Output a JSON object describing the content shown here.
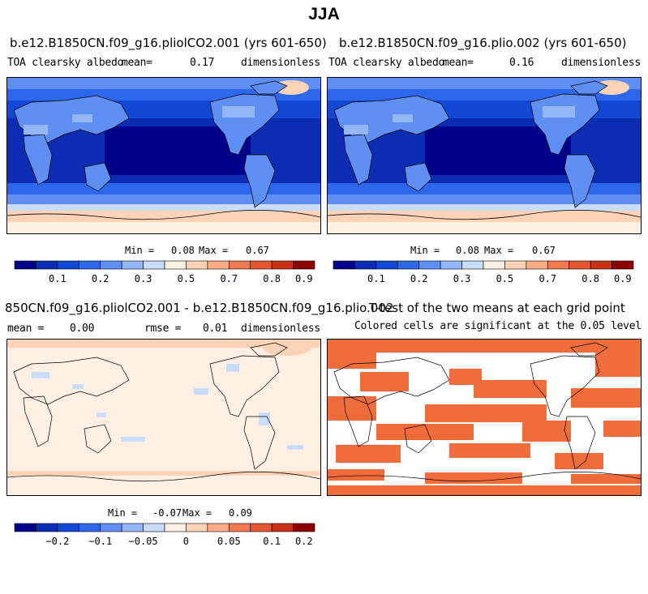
{
  "main_title": "JJA",
  "colors": {
    "albedo_scale": [
      "#00008b",
      "#0a2db4",
      "#1148d6",
      "#2d67ec",
      "#5f8ff2",
      "#93b6f7",
      "#c7ddfb",
      "#fff0e3",
      "#fdd3b8",
      "#fbab86",
      "#f37a50",
      "#e4562f",
      "#c83018",
      "#8b0000"
    ],
    "land_outline": "#000000",
    "significance": "#f06c3a"
  },
  "panels": {
    "p1": {
      "title": "b.e12.B1850CN.f09_g16.pliolCO2.001 (yrs 601-650)",
      "variable": "TOA clearsky albedo",
      "mean_label": "mean=",
      "mean_value": "0.17",
      "units": "dimensionless",
      "min_label": "Min =",
      "min_value": "0.08",
      "max_label": "Max =",
      "max_value": "0.67"
    },
    "p2": {
      "title": "b.e12.B1850CN.f09_g16.plio.002 (yrs 601-650)",
      "variable": "TOA clearsky albedo",
      "mean_label": "mean=",
      "mean_value": "0.16",
      "units": "dimensionless",
      "min_label": "Min =",
      "min_value": "0.08",
      "max_label": "Max =",
      "max_value": "0.67"
    },
    "p3": {
      "title": "850CN.f09_g16.pliolCO2.001 - b.e12.B1850CN.f09_g16.plio.002",
      "mean_label": "mean =",
      "mean_value": "0.00",
      "rmse_label": "rmse =",
      "rmse_value": "0.01",
      "units": "dimensionless",
      "min_label": "Min =",
      "min_value": "-0.07",
      "max_label": "Max =",
      "max_value": "0.09"
    },
    "p4": {
      "title": "T-test of the two means at each grid point",
      "subtitle": "Colored cells are significant at the 0.05 level"
    }
  },
  "chart_data": [
    {
      "type": "heatmap",
      "title": "b.e12.B1850CN.f09_g16.pliolCO2.001 (yrs 601-650)",
      "variable": "TOA clearsky albedo",
      "mean": 0.17,
      "min": 0.08,
      "max": 0.67,
      "colorbar_ticks": [
        "0.1",
        "0.2",
        "0.3",
        "0.5",
        "0.7",
        "0.8",
        "0.9"
      ],
      "colorbar_bins": 14
    },
    {
      "type": "heatmap",
      "title": "b.e12.B1850CN.f09_g16.plio.002 (yrs 601-650)",
      "variable": "TOA clearsky albedo",
      "mean": 0.16,
      "min": 0.08,
      "max": 0.67,
      "colorbar_ticks": [
        "0.1",
        "0.2",
        "0.3",
        "0.5",
        "0.7",
        "0.8",
        "0.9"
      ],
      "colorbar_bins": 14
    },
    {
      "type": "heatmap",
      "title": "850CN.f09_g16.pliolCO2.001 - b.e12.B1850CN.f09_g16.plio.002",
      "mean": 0.0,
      "rmse": 0.01,
      "min": -0.07,
      "max": 0.09,
      "colorbar_ticks": [
        "−0.2",
        "−0.1",
        "−0.05",
        "0",
        "0.05",
        "0.1",
        "0.2"
      ],
      "colorbar_bins": 14
    },
    {
      "type": "heatmap",
      "title": "T-test of the two means at each grid point",
      "note": "Colored cells are significant at the 0.05 level"
    }
  ]
}
